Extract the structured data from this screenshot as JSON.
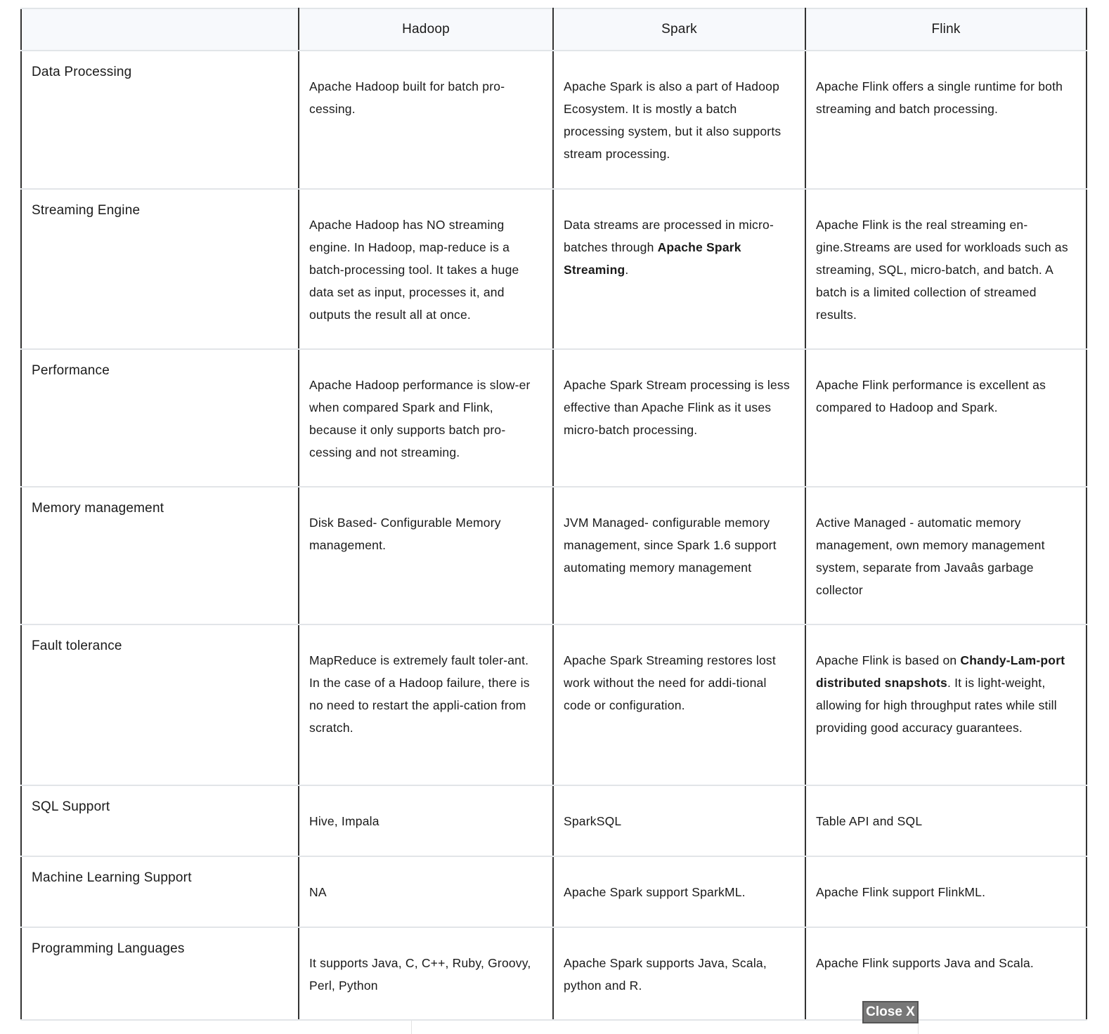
{
  "columns": [
    "",
    "Hadoop",
    "Spark",
    "Flink"
  ],
  "rows": [
    {
      "label": "Data Processing",
      "cells": [
        [
          {
            "t": "Apache Hadoop built for batch pro-cessing."
          }
        ],
        [
          {
            "t": "Apache Spark is also a part of Hadoop Ecosystem. It is mostly a batch processing system, but it also supports stream processing."
          }
        ],
        [
          {
            "t": "Apache Flink offers a single runtime for both streaming and batch processing."
          }
        ]
      ]
    },
    {
      "label": "Streaming Engine",
      "cells": [
        [
          {
            "t": "Apache Hadoop has NO streaming engine. In Hadoop, map-reduce is a batch-processing tool. It takes a huge data set as input, processes it, and outputs the result all at once."
          }
        ],
        [
          {
            "t": "Data streams are processed in micro-batches through "
          },
          {
            "t": "Apache Spark Streaming",
            "b": true
          },
          {
            "t": "."
          }
        ],
        [
          {
            "t": "Apache Flink is the real streaming en-gine.Streams are used for workloads such as streaming, SQL, micro-batch, and batch. A batch is a limited collection of streamed results."
          }
        ]
      ]
    },
    {
      "label": "Performance",
      "cells": [
        [
          {
            "t": "Apache Hadoop performance is slow-er when compared Spark and Flink, because it only supports batch pro-cessing and not streaming."
          }
        ],
        [
          {
            "t": "Apache Spark Stream processing is less effective than Apache Flink as it uses micro-batch processing."
          }
        ],
        [
          {
            "t": "Apache Flink performance is excellent as compared to Hadoop and Spark."
          }
        ]
      ]
    },
    {
      "label": "Memory management",
      "cells": [
        [
          {
            "t": "Disk Based- Configurable Memory management."
          }
        ],
        [
          {
            "t": "JVM Managed- configurable memory management, since Spark 1.6 support automating memory management"
          }
        ],
        [
          {
            "t": "Active Managed - automatic memory management, own memory management system, separate from Javaâs garbage collector"
          }
        ]
      ]
    },
    {
      "label": "Fault tolerance",
      "cells": [
        [
          {
            "t": "MapReduce is extremely fault toler-ant. In the case of a Hadoop failure, there is no need to restart the appli-cation from scratch."
          }
        ],
        [
          {
            "t": "Apache Spark Streaming restores lost work without the need for addi-tional code or configuration."
          }
        ],
        [
          {
            "t": "Apache Flink is based on "
          },
          {
            "t": "Chandy-Lam-port distributed snapshots",
            "b": true
          },
          {
            "t": ". It is light-weight, allowing for high throughput rates while still providing good accuracy guarantees."
          }
        ]
      ]
    },
    {
      "label": "SQL Support",
      "cells": [
        [
          {
            "t": "Hive, Impala"
          }
        ],
        [
          {
            "t": "SparkSQL"
          }
        ],
        [
          {
            "t": "Table API and SQL"
          }
        ]
      ]
    },
    {
      "label": "Machine Learning Support",
      "cells": [
        [
          {
            "t": "NA"
          }
        ],
        [
          {
            "t": "Apache Spark support SparkML."
          }
        ],
        [
          {
            "t": "Apache Flink support FlinkML."
          }
        ]
      ]
    },
    {
      "label": "Programming Languages",
      "cells": [
        [
          {
            "t": "It supports Java, C, C++, Ruby, Groovy, Perl, Python"
          }
        ],
        [
          {
            "t": "Apache Spark supports Java, Scala, python and R."
          }
        ],
        [
          {
            "t": "Apache Flink supports Java and Scala."
          }
        ]
      ]
    }
  ],
  "close_button": "Close X"
}
